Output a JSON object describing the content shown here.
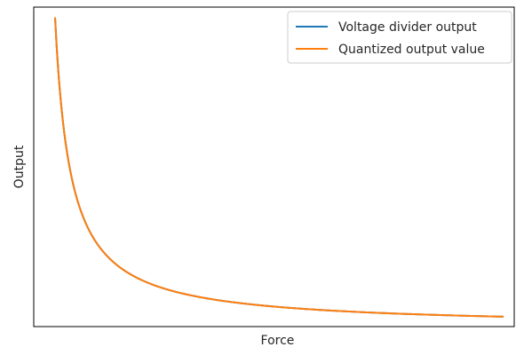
{
  "chart_data": {
    "type": "line",
    "title": "",
    "xlabel": "Force",
    "ylabel": "Output",
    "x_ticks_visible": false,
    "y_ticks_visible": false,
    "grid": false,
    "legend_position": "upper-right",
    "xlim": [
      0,
      1
    ],
    "ylim": [
      0,
      1
    ],
    "series": [
      {
        "name": "Voltage divider output",
        "color": "#1f77b4",
        "x": [
          0.0,
          0.01,
          0.02,
          0.04,
          0.07,
          0.1,
          0.15,
          0.2,
          0.3,
          0.4,
          0.5,
          0.6,
          0.7,
          0.8,
          0.9,
          1.0
        ],
        "y": [
          0.968,
          0.75,
          0.61,
          0.445,
          0.32,
          0.25,
          0.18,
          0.141,
          0.097,
          0.074,
          0.06,
          0.05,
          0.043,
          0.038,
          0.034,
          0.031
        ]
      },
      {
        "name": "Quantized output value",
        "color": "#ff7f0e",
        "x": [
          0.0,
          0.01,
          0.02,
          0.04,
          0.07,
          0.1,
          0.15,
          0.2,
          0.3,
          0.4,
          0.5,
          0.6,
          0.7,
          0.8,
          0.9,
          1.0
        ],
        "y": [
          0.968,
          0.75,
          0.61,
          0.445,
          0.32,
          0.25,
          0.18,
          0.141,
          0.097,
          0.074,
          0.06,
          0.05,
          0.043,
          0.038,
          0.034,
          0.031
        ]
      }
    ]
  }
}
